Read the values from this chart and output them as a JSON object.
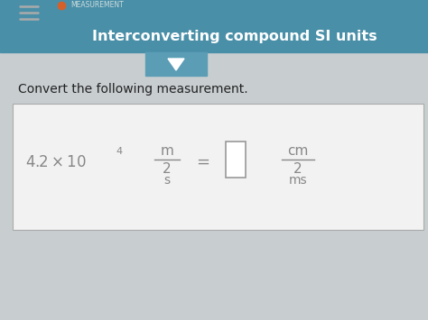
{
  "header_bg_color": "#4a8fa8",
  "header_text": "Interconverting compound SI units",
  "header_subtext": "MEASUREMENT",
  "header_text_color": "#ffffff",
  "body_bg_color": "#c8cdd0",
  "card_bg_color": "#e8e8e8",
  "question_text": "Convert the following measurement.",
  "question_color": "#222222",
  "equation_color": "#888888",
  "hamburger_color": "#aaaaaa",
  "tab_color": "#5a9db5",
  "figsize": [
    4.74,
    3.55
  ],
  "dpi": 100
}
